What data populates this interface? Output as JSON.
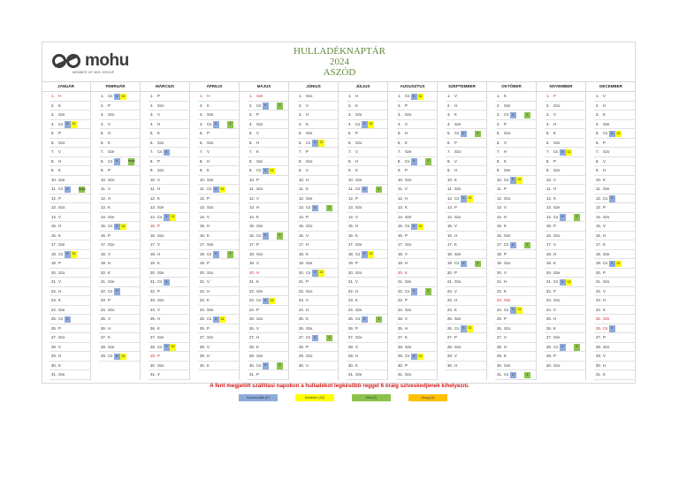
{
  "logo": {
    "name": "mohu",
    "sub": "MEMBER OF MOL GROUP"
  },
  "title": {
    "line1": "HULLADÉKNAPTÁR",
    "line2": "2024",
    "line3": "ASZÓD"
  },
  "day_names": [
    "H",
    "K",
    "Sze",
    "Cs",
    "P",
    "Szo",
    "V"
  ],
  "colors": {
    "K": "#8eaadb",
    "SZ": "#ffff00",
    "Z": "#8bc34a",
    "U": "#ffc000",
    "holiday": "#d02020"
  },
  "months": [
    {
      "name": "JANUÁR",
      "first": "H",
      "days": 31,
      "holidays": [
        1
      ],
      "marks": {
        "4": [
          "K",
          "SZ"
        ],
        "11": [
          "K",
          "fenyő"
        ],
        "18": [
          "K",
          "SZ"
        ],
        "25": [
          "K"
        ]
      }
    },
    {
      "name": "FEBRUÁR",
      "first": "Cs",
      "days": 29,
      "holidays": [],
      "marks": {
        "1": [
          "K",
          "SZ"
        ],
        "8": [
          "K",
          "fenyő"
        ],
        "15": [
          "K",
          "SZ"
        ],
        "22": [
          "K"
        ],
        "29": [
          "K",
          "SZ"
        ]
      }
    },
    {
      "name": "MÁRCIUS",
      "first": "P",
      "days": 31,
      "holidays": [
        15,
        29
      ],
      "marks": {
        "7": [
          "K"
        ],
        "14": [
          "K",
          "SZ"
        ],
        "21": [
          "K"
        ],
        "28": [
          "K",
          "SZ"
        ]
      }
    },
    {
      "name": "ÁPRILIS",
      "first": "H",
      "days": 30,
      "holidays": [
        1
      ],
      "marks": {
        "4": [
          "K",
          "Z"
        ],
        "11": [
          "K",
          "SZ"
        ],
        "18": [
          "K",
          "Z"
        ],
        "25": [
          "K",
          "SZ"
        ]
      }
    },
    {
      "name": "MÁJUS",
      "first": "Sze",
      "days": 31,
      "holidays": [
        1,
        20
      ],
      "marks": {
        "2": [
          "K",
          "Z"
        ],
        "9": [
          "K",
          "SZ"
        ],
        "16": [
          "K",
          "Z"
        ],
        "23": [
          "K",
          "SZ"
        ],
        "30": [
          "K",
          "Z"
        ]
      }
    },
    {
      "name": "JÚNIUS",
      "first": "Szo",
      "days": 30,
      "holidays": [],
      "marks": {
        "6": [
          "K",
          "SZ"
        ],
        "13": [
          "K",
          "Z"
        ],
        "20": [
          "K",
          "SZ"
        ],
        "27": [
          "K",
          "Z"
        ]
      }
    },
    {
      "name": "JÚLIUS",
      "first": "H",
      "days": 31,
      "holidays": [],
      "marks": {
        "4": [
          "K",
          "SZ"
        ],
        "11": [
          "K",
          "Z"
        ],
        "18": [
          "K",
          "SZ"
        ],
        "25": [
          "K",
          "Z"
        ]
      }
    },
    {
      "name": "AUGUSZTUS",
      "first": "Cs",
      "days": 31,
      "holidays": [
        20
      ],
      "marks": {
        "1": [
          "K",
          "SZ"
        ],
        "8": [
          "K",
          "Z"
        ],
        "15": [
          "K",
          "SZ"
        ],
        "22": [
          "K",
          "Z"
        ],
        "29": [
          "K",
          "SZ"
        ]
      }
    },
    {
      "name": "SZEPTEMBER",
      "first": "V",
      "days": 30,
      "holidays": [],
      "marks": {
        "5": [
          "K",
          "Z"
        ],
        "12": [
          "K",
          "SZ"
        ],
        "19": [
          "K",
          "Z"
        ],
        "26": [
          "K",
          "SZ"
        ]
      }
    },
    {
      "name": "OKTÓBER",
      "first": "K",
      "days": 31,
      "holidays": [
        23
      ],
      "marks": {
        "3": [
          "K",
          "Z"
        ],
        "10": [
          "K",
          "SZ"
        ],
        "17": [
          "K",
          "Z"
        ],
        "24": [
          "K",
          "SZ"
        ],
        "31": [
          "K",
          "Z"
        ]
      }
    },
    {
      "name": "NOVEMBER",
      "first": "P",
      "days": 30,
      "holidays": [
        1
      ],
      "marks": {
        "7": [
          "K",
          "SZ"
        ],
        "14": [
          "K",
          "Z"
        ],
        "21": [
          "K",
          "SZ"
        ],
        "28": [
          "K",
          "Z"
        ]
      }
    },
    {
      "name": "DECEMBER",
      "first": "V",
      "days": 31,
      "holidays": [
        25,
        26
      ],
      "marks": {
        "5": [
          "K",
          "SZ"
        ],
        "12": [
          "K"
        ],
        "19": [
          "K",
          "SZ"
        ],
        "26": [
          "K"
        ]
      }
    }
  ],
  "notice": "A fent megjelölt szállítási napokon a hulladékot legkésőbb reggel 6 óráig szíveskedjenek kihelyezni.",
  "legend": [
    {
      "key": "K",
      "label": "Kommunális (K)"
    },
    {
      "key": "SZ",
      "label": "Szelektív (SZ)"
    },
    {
      "key": "Z",
      "label": "Zöld (Z)"
    },
    {
      "key": "U",
      "label": "Üveg (Ü)"
    }
  ]
}
